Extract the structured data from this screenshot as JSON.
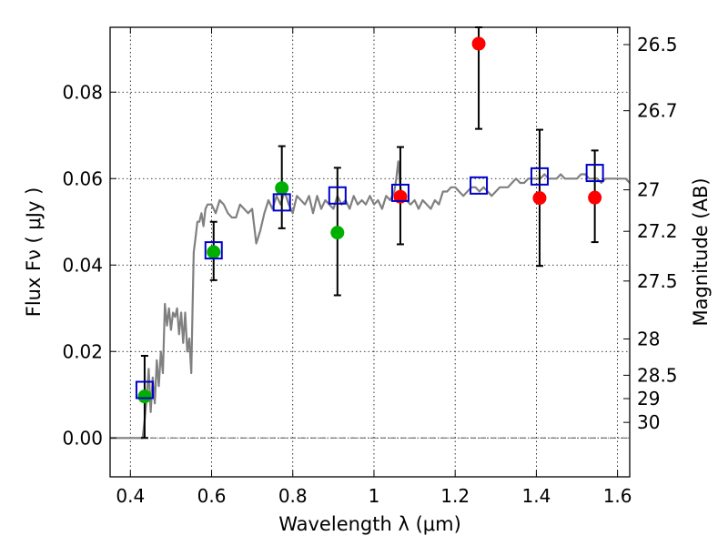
{
  "chart_data": {
    "type": "scatter",
    "xlabel": "Wavelength  λ (μm)",
    "ylabel": "Flux  Fν  ( μJy )",
    "ylabel_right": "Magnitude (AB)",
    "xlim": [
      0.35,
      1.63
    ],
    "ylim": [
      -0.009,
      0.095
    ],
    "x_ticks": [
      0.4,
      0.6,
      0.8,
      1.0,
      1.2,
      1.4,
      1.6
    ],
    "x_tick_labels": [
      "0.4",
      "0.6",
      "0.8",
      "1",
      "1.2",
      "1.4",
      "1.6"
    ],
    "y_ticks": [
      0.0,
      0.02,
      0.04,
      0.06,
      0.08
    ],
    "y_tick_labels": [
      "0.00",
      "0.02",
      "0.04",
      "0.06",
      "0.08"
    ],
    "right_ticks": [
      {
        "label": "26.5",
        "flux": 0.091
      },
      {
        "label": "26.7",
        "flux": 0.0757
      },
      {
        "label": "27",
        "flux": 0.0574
      },
      {
        "label": "27.2",
        "flux": 0.0478
      },
      {
        "label": "27.5",
        "flux": 0.0363
      },
      {
        "label": "28",
        "flux": 0.0229
      },
      {
        "label": "28.5",
        "flux": 0.0145
      },
      {
        "label": "29",
        "flux": 0.0091
      },
      {
        "label": "30",
        "flux": 0.0036
      }
    ],
    "grid": true,
    "colors": {
      "model": "#808080",
      "green": "#00b000",
      "red": "#ff0000",
      "square": "#0000cc",
      "errorbar": "#000000"
    },
    "model_spectrum": {
      "x": [
        0.35,
        0.42,
        0.43,
        0.435,
        0.44,
        0.445,
        0.45,
        0.455,
        0.46,
        0.465,
        0.47,
        0.475,
        0.48,
        0.485,
        0.49,
        0.495,
        0.5,
        0.505,
        0.51,
        0.515,
        0.52,
        0.525,
        0.53,
        0.535,
        0.54,
        0.545,
        0.55,
        0.553,
        0.556,
        0.56,
        0.565,
        0.57,
        0.575,
        0.58,
        0.585,
        0.59,
        0.6,
        0.61,
        0.62,
        0.63,
        0.64,
        0.65,
        0.66,
        0.67,
        0.68,
        0.69,
        0.7,
        0.71,
        0.72,
        0.73,
        0.74,
        0.75,
        0.76,
        0.77,
        0.78,
        0.79,
        0.8,
        0.81,
        0.82,
        0.83,
        0.84,
        0.85,
        0.86,
        0.87,
        0.88,
        0.89,
        0.9,
        0.91,
        0.92,
        0.93,
        0.94,
        0.95,
        0.96,
        0.97,
        0.98,
        0.99,
        1.0,
        1.01,
        1.02,
        1.03,
        1.04,
        1.05,
        1.055,
        1.06,
        1.065,
        1.07,
        1.08,
        1.09,
        1.1,
        1.11,
        1.12,
        1.13,
        1.14,
        1.15,
        1.16,
        1.17,
        1.18,
        1.19,
        1.2,
        1.21,
        1.22,
        1.23,
        1.24,
        1.25,
        1.26,
        1.27,
        1.28,
        1.29,
        1.3,
        1.31,
        1.32,
        1.33,
        1.34,
        1.35,
        1.36,
        1.37,
        1.38,
        1.39,
        1.4,
        1.41,
        1.42,
        1.43,
        1.44,
        1.45,
        1.46,
        1.47,
        1.48,
        1.49,
        1.5,
        1.51,
        1.52,
        1.53,
        1.54,
        1.55,
        1.56,
        1.57,
        1.58,
        1.59,
        1.6,
        1.61,
        1.62,
        1.63
      ],
      "y": [
        0.0,
        0.0,
        0.0,
        0.004,
        0.009,
        0.016,
        0.006,
        0.014,
        0.008,
        0.018,
        0.012,
        0.02,
        0.015,
        0.031,
        0.026,
        0.03,
        0.025,
        0.029,
        0.028,
        0.03,
        0.024,
        0.029,
        0.022,
        0.029,
        0.02,
        0.023,
        0.015,
        0.03,
        0.043,
        0.046,
        0.05,
        0.05,
        0.052,
        0.049,
        0.053,
        0.054,
        0.054,
        0.052,
        0.055,
        0.054,
        0.052,
        0.051,
        0.051,
        0.054,
        0.053,
        0.052,
        0.053,
        0.045,
        0.048,
        0.052,
        0.055,
        0.053,
        0.056,
        0.054,
        0.057,
        0.054,
        0.052,
        0.056,
        0.055,
        0.054,
        0.056,
        0.052,
        0.056,
        0.053,
        0.055,
        0.054,
        0.053,
        0.056,
        0.054,
        0.055,
        0.053,
        0.056,
        0.054,
        0.055,
        0.054,
        0.056,
        0.054,
        0.055,
        0.053,
        0.056,
        0.055,
        0.057,
        0.06,
        0.064,
        0.058,
        0.056,
        0.055,
        0.054,
        0.055,
        0.053,
        0.055,
        0.054,
        0.053,
        0.055,
        0.054,
        0.057,
        0.057,
        0.058,
        0.058,
        0.057,
        0.056,
        0.057,
        0.058,
        0.058,
        0.057,
        0.058,
        0.057,
        0.056,
        0.057,
        0.058,
        0.058,
        0.058,
        0.059,
        0.06,
        0.059,
        0.059,
        0.06,
        0.06,
        0.06,
        0.06,
        0.061,
        0.06,
        0.06,
        0.06,
        0.061,
        0.06,
        0.06,
        0.06,
        0.06,
        0.061,
        0.061,
        0.06,
        0.06,
        0.06,
        0.059,
        0.06,
        0.06,
        0.06,
        0.06,
        0.06,
        0.06,
        0.059
      ]
    },
    "errorbars": [
      {
        "x": 0.435,
        "ylow": 0.0,
        "yhigh": 0.019
      },
      {
        "x": 0.605,
        "ylow": 0.0365,
        "yhigh": 0.05
      },
      {
        "x": 0.773,
        "ylow": 0.0485,
        "yhigh": 0.0675
      },
      {
        "x": 0.91,
        "ylow": 0.033,
        "yhigh": 0.0625
      },
      {
        "x": 1.065,
        "ylow": 0.0448,
        "yhigh": 0.0673
      },
      {
        "x": 1.258,
        "ylow": 0.0715,
        "yhigh": 0.095
      },
      {
        "x": 1.408,
        "ylow": 0.0398,
        "yhigh": 0.0713
      },
      {
        "x": 1.544,
        "ylow": 0.0453,
        "yhigh": 0.0665
      }
    ],
    "series": [
      {
        "marker": "circle",
        "color": "green",
        "x": [
          0.435,
          0.605,
          0.773,
          0.91
        ],
        "y": [
          0.0096,
          0.043,
          0.0578,
          0.0475
        ]
      },
      {
        "marker": "circle",
        "color": "red",
        "x": [
          1.065,
          1.258,
          1.408,
          1.544
        ],
        "y": [
          0.0558,
          0.0912,
          0.0555,
          0.0556
        ]
      },
      {
        "marker": "square",
        "color": "square",
        "x": [
          0.435,
          0.605,
          0.773,
          0.91,
          1.065,
          1.258,
          1.408,
          1.544
        ],
        "y": [
          0.0111,
          0.0434,
          0.0545,
          0.0561,
          0.0567,
          0.0584,
          0.0605,
          0.0613
        ]
      }
    ]
  }
}
